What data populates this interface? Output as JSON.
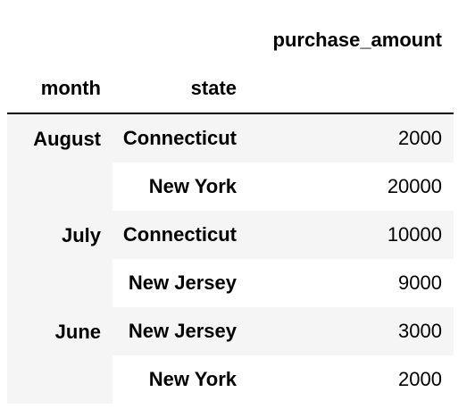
{
  "table": {
    "column_header": "purchase_amount",
    "index_headers": [
      "month",
      "state"
    ],
    "groups": [
      {
        "month": "August",
        "rows": [
          {
            "state": "Connecticut",
            "purchase_amount": "2000"
          },
          {
            "state": "New York",
            "purchase_amount": "20000"
          }
        ]
      },
      {
        "month": "July",
        "rows": [
          {
            "state": "Connecticut",
            "purchase_amount": "10000"
          },
          {
            "state": "New Jersey",
            "purchase_amount": "9000"
          }
        ]
      },
      {
        "month": "June",
        "rows": [
          {
            "state": "New Jersey",
            "purchase_amount": "3000"
          },
          {
            "state": "New York",
            "purchase_amount": "2000"
          }
        ]
      }
    ]
  },
  "colors": {
    "row_stripe": "#f5f5f5",
    "background": "#ffffff",
    "header_rule": "#000000"
  }
}
